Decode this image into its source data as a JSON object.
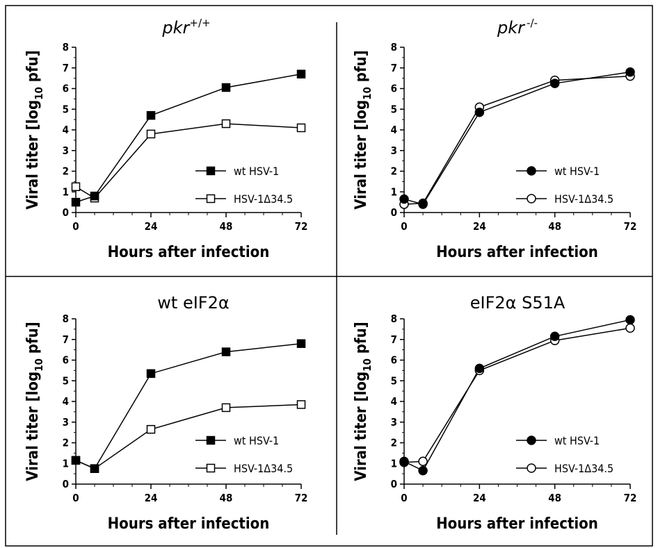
{
  "figure": {
    "panels_titles": {
      "p1": {
        "main": "pkr",
        "sup": "+/+"
      },
      "p2": {
        "main": "pkr",
        "sup": "-/-"
      },
      "p3": {
        "main": "wt eIF2α",
        "sup": ""
      },
      "p4": {
        "main": "eIF2α S51A",
        "sup": ""
      }
    }
  },
  "chart_data": [
    {
      "id": "p1",
      "type": "line",
      "title": "pkr+/+",
      "xlabel": "Hours after infection",
      "ylabel": "Viral titer [log10 pfu]",
      "xlim": [
        0,
        72
      ],
      "ylim": [
        0,
        8
      ],
      "xticks": [
        "0",
        "24",
        "48",
        "72"
      ],
      "yticks": [
        "0",
        "1",
        "2",
        "3",
        "4",
        "5",
        "6",
        "7",
        "8"
      ],
      "legend_position": "lower-right",
      "series": [
        {
          "name": "wt HSV-1",
          "marker": "square-filled",
          "x": [
            0,
            6,
            24,
            48,
            72
          ],
          "values": [
            0.5,
            0.8,
            4.7,
            6.05,
            6.7
          ]
        },
        {
          "name": "HSV-1Δ34.5",
          "marker": "square-open",
          "x": [
            0,
            6,
            24,
            48,
            72
          ],
          "values": [
            1.25,
            0.7,
            3.8,
            4.3,
            4.1
          ]
        }
      ]
    },
    {
      "id": "p2",
      "type": "line",
      "title": "pkr-/-",
      "xlabel": "Hours after infection",
      "ylabel": "Viral titer [log10 pfu]",
      "xlim": [
        0,
        72
      ],
      "ylim": [
        0,
        8
      ],
      "xticks": [
        "0",
        "24",
        "48",
        "72"
      ],
      "yticks": [
        "0",
        "1",
        "2",
        "3",
        "4",
        "5",
        "6",
        "7",
        "8"
      ],
      "legend_position": "lower-right",
      "series": [
        {
          "name": "wt HSV-1",
          "marker": "circle-filled",
          "x": [
            0,
            6,
            24,
            48,
            72
          ],
          "values": [
            0.65,
            0.4,
            4.85,
            6.25,
            6.8
          ]
        },
        {
          "name": "HSV-1Δ34.5",
          "marker": "circle-open",
          "x": [
            0,
            6,
            24,
            48,
            72
          ],
          "values": [
            0.4,
            0.45,
            5.1,
            6.4,
            6.6
          ]
        }
      ]
    },
    {
      "id": "p3",
      "type": "line",
      "title": "wt eIF2α",
      "xlabel": "Hours after infection",
      "ylabel": "Viral titer [log10 pfu]",
      "xlim": [
        0,
        72
      ],
      "ylim": [
        0,
        8
      ],
      "xticks": [
        "0",
        "24",
        "48",
        "72"
      ],
      "yticks": [
        "0",
        "1",
        "2",
        "3",
        "4",
        "5",
        "6",
        "7",
        "8"
      ],
      "legend_position": "lower-right",
      "series": [
        {
          "name": "wt HSV-1",
          "marker": "square-filled",
          "x": [
            0,
            6,
            24,
            48,
            72
          ],
          "values": [
            1.15,
            0.75,
            5.35,
            6.4,
            6.8
          ]
        },
        {
          "name": "HSV-1Δ34.5",
          "marker": "square-open",
          "x": [
            0,
            6,
            24,
            48,
            72
          ],
          "values": [
            1.15,
            0.75,
            2.65,
            3.7,
            3.85
          ]
        }
      ]
    },
    {
      "id": "p4",
      "type": "line",
      "title": "eIF2α S51A",
      "xlabel": "Hours after infection",
      "ylabel": "Viral titer [log10 pfu]",
      "xlim": [
        0,
        72
      ],
      "ylim": [
        0,
        8
      ],
      "xticks": [
        "0",
        "24",
        "48",
        "72"
      ],
      "yticks": [
        "0",
        "1",
        "2",
        "3",
        "4",
        "5",
        "6",
        "7",
        "8"
      ],
      "legend_position": "lower-right",
      "series": [
        {
          "name": "wt HSV-1",
          "marker": "circle-filled",
          "x": [
            0,
            6,
            24,
            48,
            72
          ],
          "values": [
            1.1,
            0.65,
            5.6,
            7.15,
            7.95
          ]
        },
        {
          "name": "HSV-1Δ34.5",
          "marker": "circle-open",
          "x": [
            0,
            6,
            24,
            48,
            72
          ],
          "values": [
            1.05,
            1.1,
            5.5,
            6.95,
            7.55
          ]
        }
      ]
    }
  ]
}
